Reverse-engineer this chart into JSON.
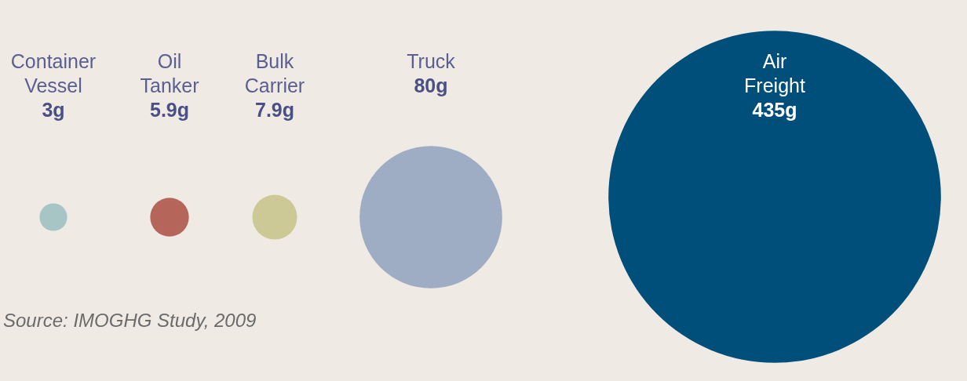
{
  "chart_data": {
    "type": "other",
    "categories": [
      "Container Vessel",
      "Oil Tanker",
      "Bulk Carrier",
      "Truck",
      "Air Freight"
    ],
    "values": [
      3,
      5.9,
      7.9,
      80,
      435
    ],
    "value_labels": [
      "3g",
      "5.9g",
      "7.9g",
      "80g",
      "435g"
    ],
    "colors": [
      "#a8c5c5",
      "#b5655a",
      "#ccc996",
      "#9eacc4",
      "#004e7a"
    ],
    "annotations": [
      "Source: IMOGHG Study, 2009"
    ]
  }
}
